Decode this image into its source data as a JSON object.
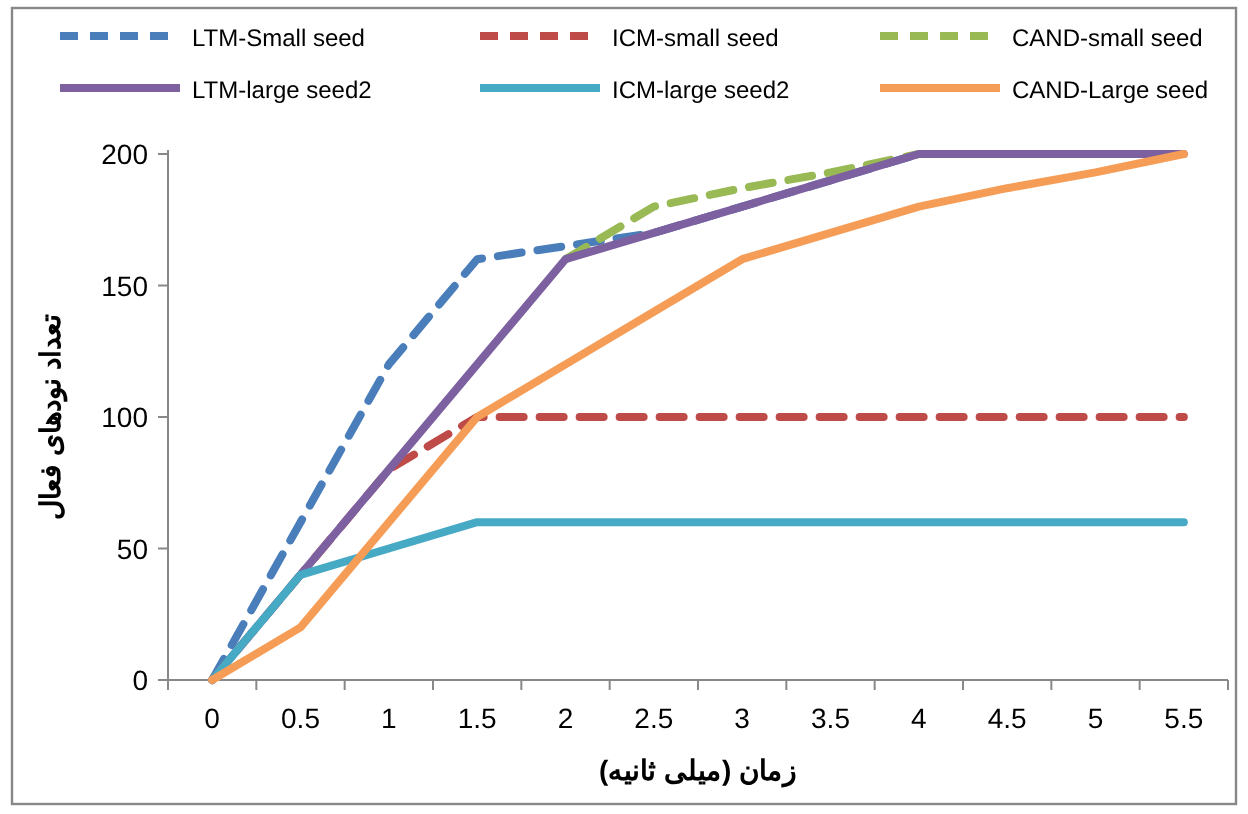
{
  "chart_data": {
    "type": "line",
    "xlabel": "زمان (میلی ثانیه)",
    "ylabel": "تعداد نودهای فعال",
    "categories": [
      "0",
      "0.5",
      "1",
      "1.5",
      "2",
      "2.5",
      "3",
      "3.5",
      "4",
      "4.5",
      "5",
      "5.5"
    ],
    "ylim": [
      0,
      200
    ],
    "yticks": [
      0,
      50,
      100,
      150,
      200
    ],
    "legend": "top",
    "marker": "none",
    "series": [
      {
        "name": "LTM-Small seed",
        "color": "#4a7ebb",
        "line_style": "dashed",
        "values": [
          0,
          60,
          120,
          160,
          165,
          170,
          180,
          190,
          200,
          200,
          null,
          null
        ]
      },
      {
        "name": "ICM-small seed",
        "color": "#be4b48",
        "line_style": "dashed",
        "values": [
          0,
          40,
          80,
          100,
          100,
          100,
          100,
          100,
          100,
          100,
          100,
          100
        ]
      },
      {
        "name": "CAND-small seed",
        "color": "#98b954",
        "line_style": "dashed",
        "values": [
          null,
          null,
          null,
          null,
          160,
          180,
          187,
          193,
          200,
          null,
          null,
          null
        ]
      },
      {
        "name": "LTM-large seed2",
        "color": "#7d60a0",
        "line_style": "solid",
        "values": [
          0,
          40,
          80,
          120,
          160,
          170,
          180,
          190,
          200,
          200,
          200,
          200
        ]
      },
      {
        "name": "ICM-large seed2",
        "color": "#46aac5",
        "line_style": "solid",
        "values": [
          0,
          40,
          50,
          60,
          60,
          60,
          60,
          60,
          60,
          60,
          60,
          60
        ]
      },
      {
        "name": "CAND-Large seed",
        "color": "#f59d56",
        "line_style": "solid",
        "values": [
          0,
          20,
          60,
          100,
          120,
          140,
          160,
          170,
          180,
          187,
          193,
          200
        ]
      }
    ]
  }
}
